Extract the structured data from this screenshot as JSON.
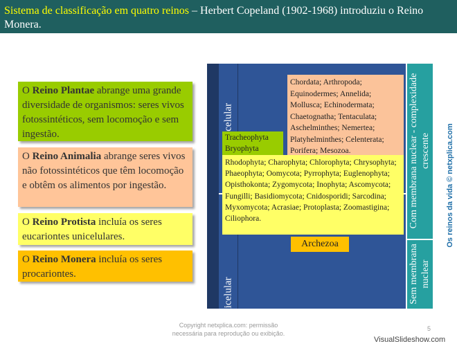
{
  "title": {
    "highlight": "Sistema de classificação em quatro reinos",
    "rest": " – Herbert Copeland (1902-1968) introduziu o Reino Monera."
  },
  "kingdoms": {
    "plantae": {
      "prefix": "O ",
      "name": "Reino Plantae",
      "text": " abrange uma grande diversidade de organismos: seres vivos fotossintéticos, sem locomoção e sem ingestão."
    },
    "animalia": {
      "prefix": "O ",
      "name": "Reino Animalia",
      "text": " abrange seres vivos não fotossintéticos que têm locomoção e obtêm os alimentos por ingestão."
    },
    "protista": {
      "prefix": "O ",
      "name": "Reino Protista",
      "text": " incluía os seres eucariontes unicelulares."
    },
    "monera": {
      "prefix": "O ",
      "name": "Reino Monera",
      "text": " incluía os seres procariontes."
    }
  },
  "diagram": {
    "multicelular": "Multicelular",
    "unicelular": "Unicelular",
    "right_top": "Com membrana nuclear - complexidade crescente",
    "right_bottom": "Sem membrana nuclear",
    "animal_phyla": "Chordata; Arthropoda; Equinodermes; Annelida; Mollusca; Echinodermata; Chaetognatha; Tentaculata; Aschelminthes; Nemertea; Platyhelminthes; Celenterata; Porifera; Mesozoa.",
    "plant_phyla": "Tracheophyta Bryophyta",
    "protist_phyla": "Rhodophyta; Charophyta; Chlorophyta; Chrysophyta; Phaeophyta; Oomycota; Pyrrophyta; Euglenophyta; Opisthokonta; Zygomycota; Inophyta; Ascomycota; Fungilli; Basidiomycota; Cnidosporidi; Sarcodina; Myxomycota; Acrasiae; Protoplasta; Zoomastigina; Ciliophora.",
    "archezoa": "Archezoa"
  },
  "watermark": "Os reinos da vida © netxplica.com",
  "footer": {
    "line1": "Copyright netxplica.com: permissão",
    "line2": "necessária para reprodução ou exibição.",
    "page": "5"
  },
  "brand": "VisualSlideshow.com",
  "colors": {
    "title_bg": "#1f5f5f",
    "title_highlight": "#ffff00",
    "plantae": "#99cc00",
    "animalia": "#ffc599",
    "protista": "#ffff66",
    "monera": "#ffc000",
    "diagram_blue": "#2f5597",
    "diagram_teal": "#26a0a0"
  }
}
